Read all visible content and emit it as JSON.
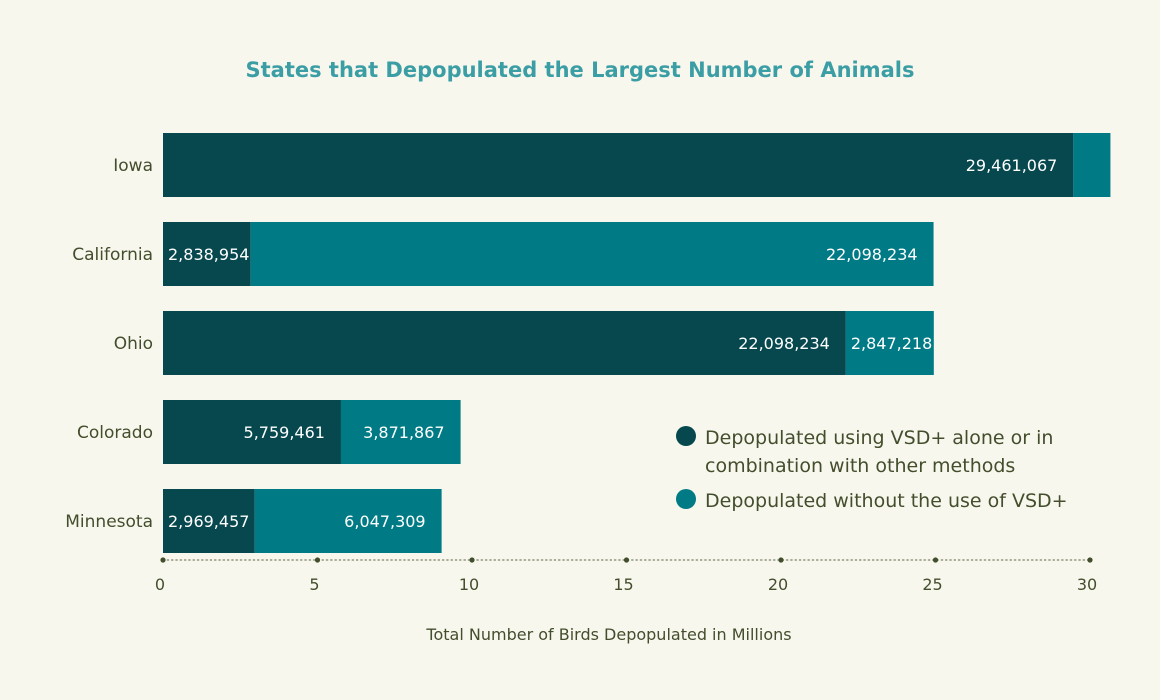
{
  "chart_data": {
    "type": "bar",
    "orientation": "horizontal",
    "stacked": true,
    "title": "States that Depopulated the Largest Number of Animals",
    "xlabel": "Total Number of Birds Depopulated in Millions",
    "ylabel": "",
    "xlim": [
      0,
      30
    ],
    "xticks": [
      0,
      5,
      10,
      15,
      20,
      25,
      30
    ],
    "categories": [
      "Iowa",
      "California",
      "Ohio",
      "Colorado",
      "Minnesota"
    ],
    "series": [
      {
        "name": "Depopulated using VSD+ alone or in combination with other methods",
        "values": [
          29.461067,
          2.838954,
          22.098234,
          5.759461,
          2.969457
        ],
        "labels": [
          "29,461,067",
          "2,838,954",
          "22,098,234",
          "5,759,461",
          "2,969,457"
        ]
      },
      {
        "name": "Depopulated without the use of VSD+",
        "values": [
          1.2,
          22.098234,
          2.847218,
          3.871867,
          6.047309
        ],
        "labels": [
          "",
          "22,098,234",
          "2,847,218",
          "3,871,867",
          "6,047,309"
        ]
      }
    ],
    "legend_position": "lower-right",
    "grid": false
  },
  "legend": {
    "items": [
      {
        "lines": [
          "Depopulated using VSD+ alone or in",
          "combination with other methods"
        ]
      },
      {
        "lines": [
          "Depopulated without the use of VSD+"
        ]
      }
    ]
  },
  "colors": {
    "background": "#f8f7ee",
    "series_dark": "#07484f",
    "series_teal": "#007b86",
    "title": "#3c9ea5",
    "text": "#434e2c",
    "value_text": "#ffffff",
    "axis": "#7b8268"
  }
}
